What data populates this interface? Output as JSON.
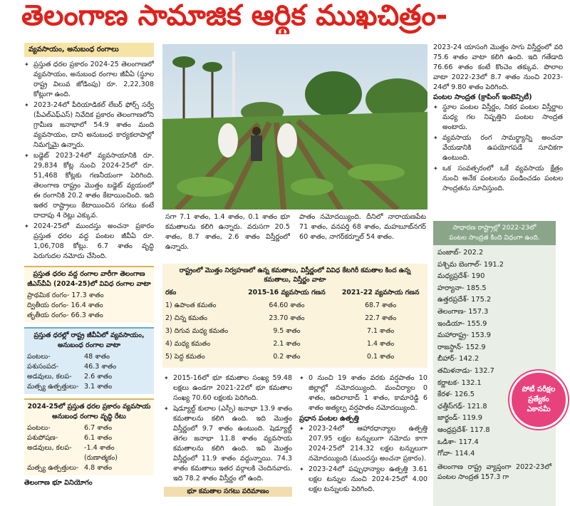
{
  "title": "తెలంగాణ సామాజిక ఆర్థిక ముఖచిత్రం-",
  "left": {
    "heading": "వ్యవసాయం, అనుబంధ రంగాలు",
    "bullets": [
      "ప్రస్తుత ధరల ప్రకారం 2024-25 తెలంగాణలో వ్యవసాయం, అనుబంధ రంగాల జీవీఏ (స్థూల రాష్ట్ర విలువ జోడింపు) రూ. 2,22,308 కోట్లుగా ఉంది.",
      "2023-24లో పీరియాడికల్ లేబర్ ఫోర్స్ సర్వే (పీఎల్ఎఫ్ఎస్) నివేదిక ప్రకారం తెలంగాణలోని గ్రామీణ జనాభాలో 54.9 శాతం మంది వ్యవసాయం, దాని అనుబంధ కార్యకలాపాల్లో నిమగ్నమై ఉన్నారు.",
      "బడ్జెట్ 2023-24లో వ్యవసాయానికి రూ. 29,834 కోట్ల నుంచి 2024-25లో రూ. 51,468 కోట్లకు గణనీయంగా పెరిగింది. తెలంగాణ రాష్ట్రం మొత్తం బడ్జెట్ వ్యయంలో ఈ రంగానికి 20.2 శాతం కేటాయించింది. ఇది ఇతర రాష్ట్రాలు కేటాయించిన సగటు కంటే దాదాపు 4 రెట్లు ఎక్కువ.",
      "2024-25లో ముందస్తు అంచనా ప్రకారం ప్రస్తుత ధరల వద్ద పంటల జీవీఏ రూ. 1,06,708 కోట్లు. 6.7 శాతం వృద్ధి పెరుగుదల నమోదు చేసింది."
    ],
    "box1": {
      "title": "ప్రస్తుత ధరల వద్ద రంగాల వారీగా తెలంగాణ జీఎస్‌వీఏ (2024-25)లో వివిధ రంగాల వాటా",
      "rows": [
        "ప్రాథమిక రంగం- 17.3 శాతం",
        "ద్వితీయ రంగం- 16.4 శాతం",
        "తృతీయ రంగం- 66.3 శాతం"
      ]
    },
    "box2": {
      "title": "ప్రస్తుత ధరల్లో రాష్ట్ర జీవీఏలో వ్యవసాయం, అనుబంధ రంగాల వాటా",
      "rows": [
        [
          "పంటలు-",
          "48 శాతం"
        ],
        [
          "పశుసంపద-",
          "46.3 శాతం"
        ],
        [
          "అడవులు, కలప-",
          "2.6 శాతం"
        ],
        [
          "మత్స్య ఉత్పత్తులు-",
          "3.1 శాతం"
        ]
      ]
    },
    "box3": {
      "title": "2024-25లో ప్రస్తుత ధరల ప్రకారం వ్యవసాయ అనుబంధ రంగాల వృద్ధి రేటు",
      "rows": [
        [
          "పంటలు-",
          "6.7 శాతం"
        ],
        [
          "పశుపోషణ-",
          "6.1 శాతం"
        ],
        [
          "అడవులు, కలప-",
          "-1.4 శాతం"
        ],
        [
          "",
          "(రుణాత్మకం)"
        ],
        [
          "మత్స్య ఉత్పత్తులు-",
          "4.8 శాతం"
        ]
      ]
    },
    "footer": "తెలంగాణ భూ వినియోగం"
  },
  "middle": {
    "text_a": "సగా 7.1 శాతం, 1.4 శాతం, 0.1 శాతం భూ కమతాలను కలిగి ఉన్నారు. వరుసగా 20.5 శాతం, 8.7 శాతం, 2.6 శాతం విస్తీర్ణంలో ఉన్నారు.",
    "text_b": "పాతం నమోదయ్యింది. దీనిలో నారాయణపేట 71 శాతం, వనపర్తి 68 శాతం, మహబూబ్‌నగర్ 60 శాతం, నాగర్‌కర్నూల్ 54 శాతం.",
    "table": {
      "title": "రాష్ట్రంలో మొత్తం నిర్వహణలో ఉన్న కమతాలు, విస్తీర్ణంలో వివిధ కేటగిరీ కమతాల కింద ఉన్న కమతాలు, విస్తీర్ణం వాటా",
      "header": [
        "రకం",
        "2015-16 వ్యవసాయ గణన",
        "2021-22 వ్యవసాయ గణన"
      ],
      "rows": [
        [
          "1) ఉపాంత కమతం",
          "64.60 శాతం",
          "68.7 శాతం"
        ],
        [
          "2) చిన్న కమతం",
          "23.70 శాతం",
          "22.7 శాతం"
        ],
        [
          "3) దిగువ మధ్య కమతం",
          "9.5 శాతం",
          "7.1 శాతం"
        ],
        [
          "4) మధ్య కమతం",
          "2.1 శాతం",
          "1.4 శాతం"
        ],
        [
          "5) పెద్ద కమతం",
          "0.2 శాతం",
          "0.1 శాతం"
        ]
      ]
    },
    "col_a": [
      "2015-16లో భూ కమతాల సంఖ్య 59.48 లక్షలు ఉండగా 2021-22లో భూ కమతాల సంఖ్య 70.60 లక్షలకు పెరిగింది.",
      "షెడ్యూల్డ్ కులాల (ఎస్సీ) జనాభా 13.9 శాతం కమతాలను కలిగి ఉంది. ఇది మొత్తం విస్తీర్ణంలో 9.7 శాతం ఉంటుంది. షెడ్యూల్డ్ తెగల జనాభా 11.8 శాతం వ్యవసాయ కమతాలను కలిగి ఉంది. ఇవి మొత్తం విస్తీర్ణంలో 11.9 శాతం వద్దున్నాయి. 74.3 శాతం కమతాలు ఇతర వర్గాలకి చెందినవారు. ఇది 78.2 శాతం విస్తీర్ణం లో ఉంది."
    ],
    "col_a_box": "భూ కమతాల సగటు పరిమాణం",
    "col_b_first": "0 నుంచి 19 శాతం వరకు వర్షపాతం 10 జిల్లాల్లో నమోదయ్యింది. మంచిర్యాల 0 శాతం, ఆదిలాబాద్ 1 శాతం, కామారెడ్డి 6 శాతం అత్యల్ప వర్షపాతం నమోదయ్యింది.",
    "col_b_heading": "ప్రధాన పంటల ఉత్పత్తి",
    "col_b": [
      "2023-24లో ఆహారధాన్యాల ఉత్పత్తి 207.95 లక్షల టన్నులుగా నమోదు కాగా 2024-25లో 214.32 లక్షల టన్నులుగా నమోదయ్యింది (ముందస్తు అంచనా ప్రకారం).",
      "2023-24లో పప్పుధాన్యాల ఉత్పత్తి 3.61 లక్షల టన్నుల నుంచి 2024-25లో 4.00 లక్షల టన్నులకు పెరిగింది."
    ]
  },
  "right": {
    "intro": "2023-24 యాసంగి మొత్తం సాగు విస్తీర్ణంలో వరి 75.6 శాతం వాటా కలిగి ఉంది. ఇది గతేడాది 76.66 శాతం కంటే కొంచెం తక్కువ. పొలాల వాటా 2022-23లో 8.7 శాతం నుంచి 2023-24లో 9.80 శాతం పెరిగింది.",
    "heading": "పంటల సాంద్రత (క్రాపింగ్ ఇంటెన్సిటీ)",
    "bullets": [
      "స్థూల పంటల విస్తీర్ణం, నికర పంటల విస్తీర్ణాల మధ్య గల నిష్పత్తిని పంటల సాంద్రత అంటారు.",
      "వ్యవసాయ రంగ సామర్థ్యాన్ని అంచనా వేయడానికి ఉపయోగపడే సూచికగా ఉంటుంది.",
      "ఒక సంవత్సరంలో ఒకే వ్యవసాయ క్షేత్రం నుంచి అనేక పంటలను పండించడం పంటల సాంద్రతను సూచిస్తుంది."
    ],
    "box_title_1": "సాధారణ రాష్ట్రాల్లో 2022-23లో",
    "box_title_2": "పంటల సాంద్రత కింది విధంగా ఉంది.",
    "states": [
      "పంజాబ్- 202.2",
      "పశ్చిమ బెంగాల్- 191.2",
      "మధ్యప్రదేశ్- 190",
      "హర్యానా- 185.5",
      "ఉత్తరప్రదేశ్- 175.2",
      "తెలంగాణ- 157.3",
      "ఇండియా- 155.9",
      "మహారాష్ట్ర- 153.9",
      "రాజస్థాన్- 152.9",
      "బీహార్- 142.2",
      "తమిళనాడు- 132.7",
      "కర్ణాటక- 132.1",
      "కేరళ- 126.5",
      "ఛత్తీస్‌గఢ్- 121.8",
      "జార్ఖండ్- 119.9",
      "ఆంధ్రప్రదేశ్- 117.8",
      "ఒడిశా- 117.4",
      "గోవా- 114.4"
    ],
    "outro": "తెలంగాణ రాష్ట్ర వ్యాప్తంగా 2022-23లో పంటల సాంద్రత 157.3 గా"
  },
  "badge": [
    "పోటీ పరీక్షల",
    "ప్రత్యేకం",
    "ఎకానమీ"
  ]
}
